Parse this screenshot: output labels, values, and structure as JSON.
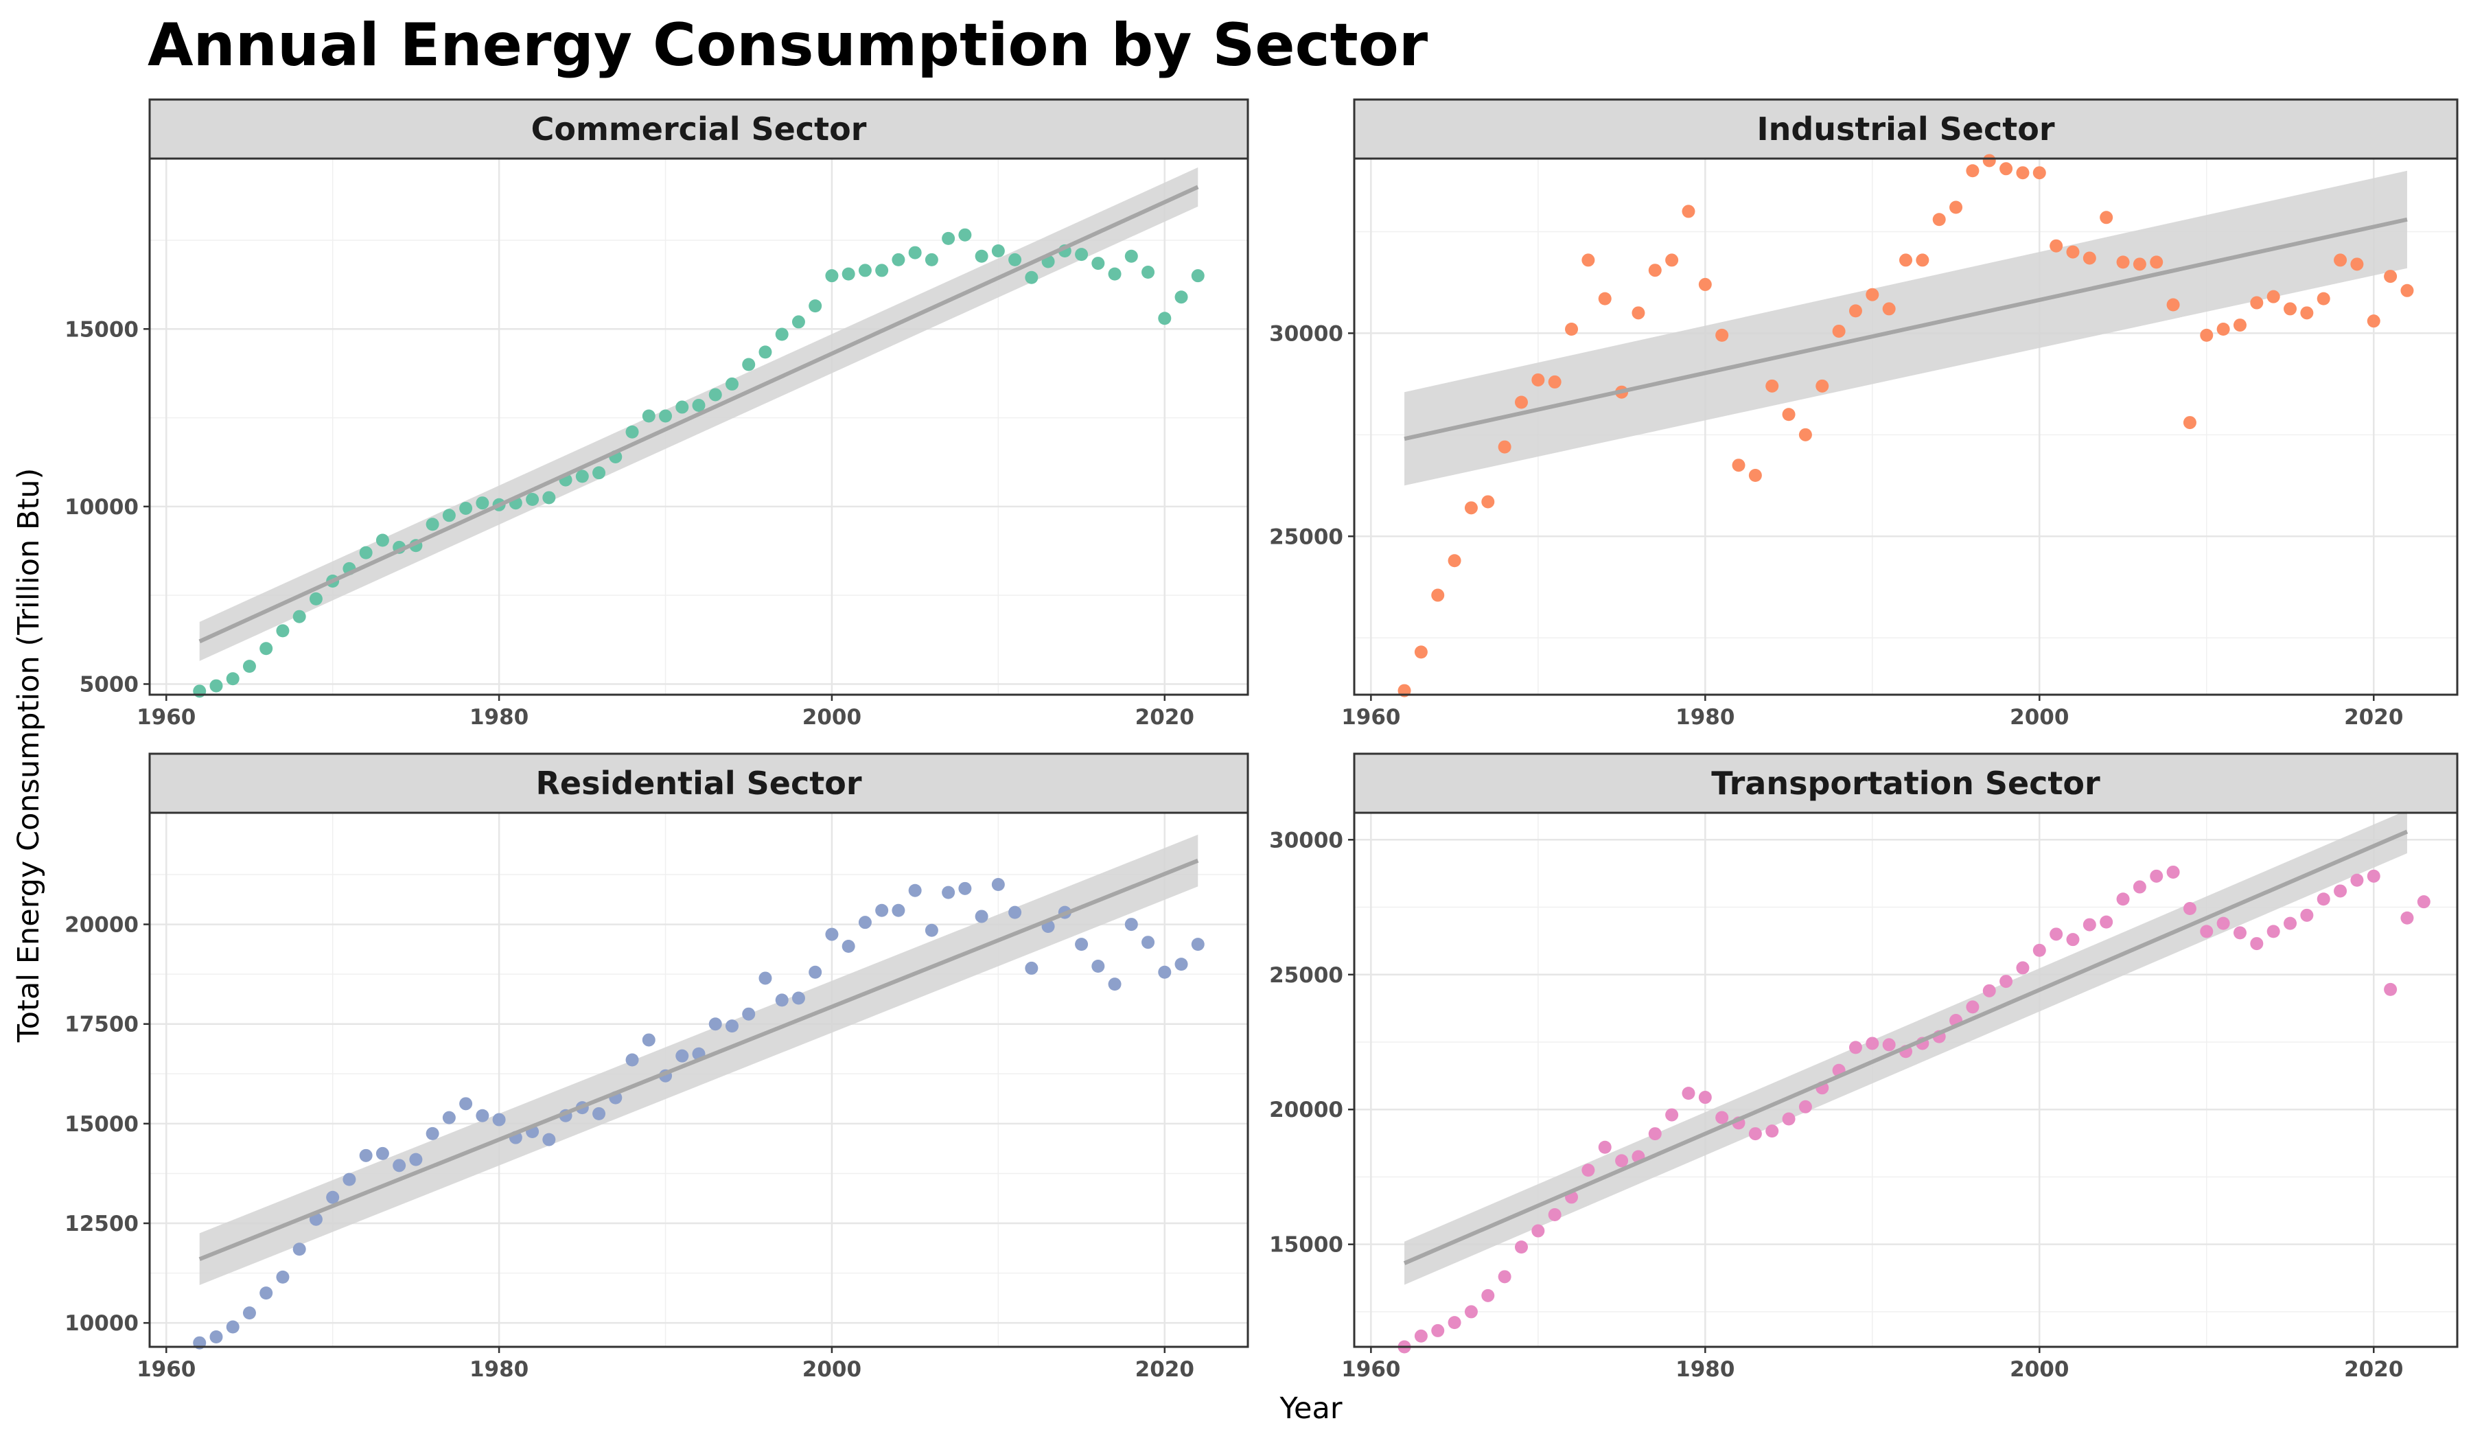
{
  "chart_data": {
    "type": "scatter",
    "title": "Annual Energy Consumption by Sector",
    "xlabel": "Year",
    "ylabel": "Total Energy Consumption (Trillion Btu)",
    "facet_layout": "2x2 grid, free y scales",
    "trend": "linear regression line with 95% confidence band",
    "trend_color": "#a6a6a6",
    "band_color": "#d3d3d3",
    "grid": true,
    "legend": "none",
    "x_ticks": [
      1960,
      1980,
      2000,
      2020
    ],
    "xlim": [
      1959,
      2025
    ],
    "panels": [
      {
        "name": "Commercial Sector",
        "color": "#66c2a5",
        "ylim": [
          4700,
          19800
        ],
        "y_ticks": [
          5000,
          10000,
          15000
        ],
        "y_tick_labels": [
          "5000",
          "10000",
          "15000"
        ],
        "fit": {
          "x": [
            1962,
            2022
          ],
          "y": [
            6200,
            19000
          ],
          "band_halfwidth": [
            550,
            550
          ]
        },
        "points": [
          [
            1962,
            4800
          ],
          [
            1963,
            4950
          ],
          [
            1964,
            5150
          ],
          [
            1965,
            5500
          ],
          [
            1966,
            6000
          ],
          [
            1967,
            6500
          ],
          [
            1968,
            6900
          ],
          [
            1969,
            7400
          ],
          [
            1970,
            7900
          ],
          [
            1971,
            8250
          ],
          [
            1972,
            8700
          ],
          [
            1973,
            9050
          ],
          [
            1974,
            8850
          ],
          [
            1975,
            8900
          ],
          [
            1976,
            9500
          ],
          [
            1977,
            9750
          ],
          [
            1978,
            9950
          ],
          [
            1979,
            10100
          ],
          [
            1980,
            10050
          ],
          [
            1981,
            10100
          ],
          [
            1982,
            10200
          ],
          [
            1983,
            10250
          ],
          [
            1984,
            10750
          ],
          [
            1985,
            10850
          ],
          [
            1986,
            10950
          ],
          [
            1987,
            11400
          ],
          [
            1988,
            12100
          ],
          [
            1989,
            12550
          ],
          [
            1990,
            12550
          ],
          [
            1991,
            12800
          ],
          [
            1992,
            12850
          ],
          [
            1993,
            13150
          ],
          [
            1994,
            13450
          ],
          [
            1995,
            14000
          ],
          [
            1996,
            14350
          ],
          [
            1997,
            14850
          ],
          [
            1998,
            15200
          ],
          [
            1999,
            15650
          ],
          [
            2000,
            16500
          ],
          [
            2001,
            16550
          ],
          [
            2002,
            16650
          ],
          [
            2003,
            16650
          ],
          [
            2004,
            16950
          ],
          [
            2005,
            17150
          ],
          [
            2006,
            16950
          ],
          [
            2007,
            17550
          ],
          [
            2008,
            17650
          ],
          [
            2009,
            17050
          ],
          [
            2010,
            17200
          ],
          [
            2011,
            16950
          ],
          [
            2012,
            16450
          ],
          [
            2013,
            16900
          ],
          [
            2014,
            17200
          ],
          [
            2015,
            17100
          ],
          [
            2016,
            16850
          ],
          [
            2017,
            16550
          ],
          [
            2018,
            17050
          ],
          [
            2019,
            16600
          ],
          [
            2020,
            15300
          ],
          [
            2021,
            15900
          ],
          [
            2022,
            16500
          ]
        ]
      },
      {
        "name": "Industrial Sector",
        "color": "#fc8d62",
        "ylim": [
          21100,
          34300
        ],
        "y_ticks": [
          25000,
          30000
        ],
        "y_tick_labels": [
          "25000",
          "30000"
        ],
        "fit": {
          "x": [
            1962,
            2022
          ],
          "y": [
            27400,
            32800
          ],
          "band_halfwidth": [
            1150,
            1200
          ]
        },
        "points": [
          [
            1962,
            21200
          ],
          [
            1963,
            22150
          ],
          [
            1964,
            23550
          ],
          [
            1965,
            24400
          ],
          [
            1966,
            25700
          ],
          [
            1967,
            25850
          ],
          [
            1968,
            27200
          ],
          [
            1969,
            28300
          ],
          [
            1970,
            28850
          ],
          [
            1971,
            28800
          ],
          [
            1972,
            30100
          ],
          [
            1973,
            31800
          ],
          [
            1974,
            30850
          ],
          [
            1975,
            28550
          ],
          [
            1976,
            30500
          ],
          [
            1977,
            31550
          ],
          [
            1978,
            31800
          ],
          [
            1979,
            33000
          ],
          [
            1980,
            31200
          ],
          [
            1981,
            29950
          ],
          [
            1982,
            26750
          ],
          [
            1983,
            26500
          ],
          [
            1984,
            28700
          ],
          [
            1985,
            28000
          ],
          [
            1986,
            27500
          ],
          [
            1987,
            28700
          ],
          [
            1988,
            30050
          ],
          [
            1989,
            30550
          ],
          [
            1990,
            30950
          ],
          [
            1991,
            30600
          ],
          [
            1992,
            31800
          ],
          [
            1993,
            31800
          ],
          [
            1994,
            32800
          ],
          [
            1995,
            33100
          ],
          [
            1996,
            34000
          ],
          [
            1997,
            34250
          ],
          [
            1998,
            34050
          ],
          [
            1999,
            33950
          ],
          [
            2000,
            33950
          ],
          [
            2001,
            32150
          ],
          [
            2002,
            32000
          ],
          [
            2003,
            31850
          ],
          [
            2004,
            32850
          ],
          [
            2005,
            31750
          ],
          [
            2006,
            31700
          ],
          [
            2007,
            31750
          ],
          [
            2008,
            30700
          ],
          [
            2009,
            27800
          ],
          [
            2010,
            29950
          ],
          [
            2011,
            30100
          ],
          [
            2012,
            30200
          ],
          [
            2013,
            30750
          ],
          [
            2014,
            30900
          ],
          [
            2015,
            30600
          ],
          [
            2016,
            30500
          ],
          [
            2017,
            30850
          ],
          [
            2018,
            31800
          ],
          [
            2019,
            31700
          ],
          [
            2020,
            30300
          ],
          [
            2021,
            31400
          ],
          [
            2022,
            31050
          ]
        ]
      },
      {
        "name": "Residential Sector",
        "color": "#8da0cb",
        "ylim": [
          9400,
          22800
        ],
        "y_ticks": [
          10000,
          12500,
          15000,
          17500,
          20000
        ],
        "y_tick_labels": [
          "10000",
          "12500",
          "15000",
          "17500",
          "20000"
        ],
        "fit": {
          "x": [
            1962,
            2022
          ],
          "y": [
            11600,
            21600
          ],
          "band_halfwidth": [
            650,
            650
          ]
        },
        "points": [
          [
            1962,
            9500
          ],
          [
            1963,
            9650
          ],
          [
            1964,
            9900
          ],
          [
            1965,
            10250
          ],
          [
            1966,
            10750
          ],
          [
            1967,
            11150
          ],
          [
            1968,
            11850
          ],
          [
            1969,
            12600
          ],
          [
            1970,
            13150
          ],
          [
            1971,
            13600
          ],
          [
            1972,
            14200
          ],
          [
            1973,
            14250
          ],
          [
            1974,
            13950
          ],
          [
            1975,
            14100
          ],
          [
            1976,
            14750
          ],
          [
            1977,
            15150
          ],
          [
            1978,
            15500
          ],
          [
            1979,
            15200
          ],
          [
            1980,
            15100
          ],
          [
            1981,
            14650
          ],
          [
            1982,
            14800
          ],
          [
            1983,
            14600
          ],
          [
            1984,
            15200
          ],
          [
            1985,
            15400
          ],
          [
            1986,
            15250
          ],
          [
            1987,
            15650
          ],
          [
            1988,
            16600
          ],
          [
            1989,
            17100
          ],
          [
            1990,
            16200
          ],
          [
            1991,
            16700
          ],
          [
            1992,
            16750
          ],
          [
            1993,
            17500
          ],
          [
            1994,
            17450
          ],
          [
            1995,
            17750
          ],
          [
            1996,
            18650
          ],
          [
            1997,
            18100
          ],
          [
            1998,
            18150
          ],
          [
            1999,
            18800
          ],
          [
            2000,
            19750
          ],
          [
            2001,
            19450
          ],
          [
            2002,
            20050
          ],
          [
            2003,
            20350
          ],
          [
            2004,
            20350
          ],
          [
            2005,
            20850
          ],
          [
            2006,
            19850
          ],
          [
            2007,
            20800
          ],
          [
            2008,
            20900
          ],
          [
            2009,
            20200
          ],
          [
            2010,
            21000
          ],
          [
            2011,
            20300
          ],
          [
            2012,
            18900
          ],
          [
            2013,
            19950
          ],
          [
            2014,
            20300
          ],
          [
            2015,
            19500
          ],
          [
            2016,
            18950
          ],
          [
            2017,
            18500
          ],
          [
            2018,
            20000
          ],
          [
            2019,
            19550
          ],
          [
            2020,
            18800
          ],
          [
            2021,
            19000
          ],
          [
            2022,
            19500
          ]
        ]
      },
      {
        "name": "Transportation Sector",
        "color": "#e78ac3",
        "ylim": [
          11200,
          31000
        ],
        "y_ticks": [
          15000,
          20000,
          25000,
          30000
        ],
        "y_tick_labels": [
          "15000",
          "20000",
          "25000",
          "30000"
        ],
        "fit": {
          "x": [
            1962,
            2022
          ],
          "y": [
            14300,
            30300
          ],
          "band_halfwidth": [
            800,
            800
          ]
        },
        "points": [
          [
            1962,
            11200
          ],
          [
            1963,
            11600
          ],
          [
            1964,
            11800
          ],
          [
            1965,
            12100
          ],
          [
            1966,
            12500
          ],
          [
            1967,
            13100
          ],
          [
            1968,
            13800
          ],
          [
            1969,
            14900
          ],
          [
            1970,
            15500
          ],
          [
            1971,
            16100
          ],
          [
            1972,
            16750
          ],
          [
            1973,
            17750
          ],
          [
            1974,
            18600
          ],
          [
            1975,
            18100
          ],
          [
            1976,
            18250
          ],
          [
            1977,
            19100
          ],
          [
            1978,
            19800
          ],
          [
            1979,
            20600
          ],
          [
            1980,
            20450
          ],
          [
            1981,
            19700
          ],
          [
            1982,
            19500
          ],
          [
            1983,
            19100
          ],
          [
            1984,
            19200
          ],
          [
            1985,
            19650
          ],
          [
            1986,
            20100
          ],
          [
            1987,
            20800
          ],
          [
            1988,
            21450
          ],
          [
            1989,
            22300
          ],
          [
            1990,
            22450
          ],
          [
            1991,
            22400
          ],
          [
            1992,
            22150
          ],
          [
            1993,
            22450
          ],
          [
            1994,
            22700
          ],
          [
            1995,
            23300
          ],
          [
            1996,
            23800
          ],
          [
            1997,
            24400
          ],
          [
            1998,
            24750
          ],
          [
            1999,
            25250
          ],
          [
            2000,
            25900
          ],
          [
            2001,
            26500
          ],
          [
            2002,
            26300
          ],
          [
            2003,
            26850
          ],
          [
            2004,
            26950
          ],
          [
            2005,
            27800
          ],
          [
            2006,
            28250
          ],
          [
            2007,
            28650
          ],
          [
            2008,
            28800
          ],
          [
            2009,
            27450
          ],
          [
            2010,
            26600
          ],
          [
            2011,
            26900
          ],
          [
            2012,
            26550
          ],
          [
            2013,
            26150
          ],
          [
            2014,
            26600
          ],
          [
            2015,
            26900
          ],
          [
            2016,
            27200
          ],
          [
            2017,
            27800
          ],
          [
            2018,
            28100
          ],
          [
            2019,
            28500
          ],
          [
            2020,
            28650
          ],
          [
            2021,
            24450
          ],
          [
            2022,
            27100
          ],
          [
            2023,
            27700
          ]
        ]
      }
    ]
  }
}
